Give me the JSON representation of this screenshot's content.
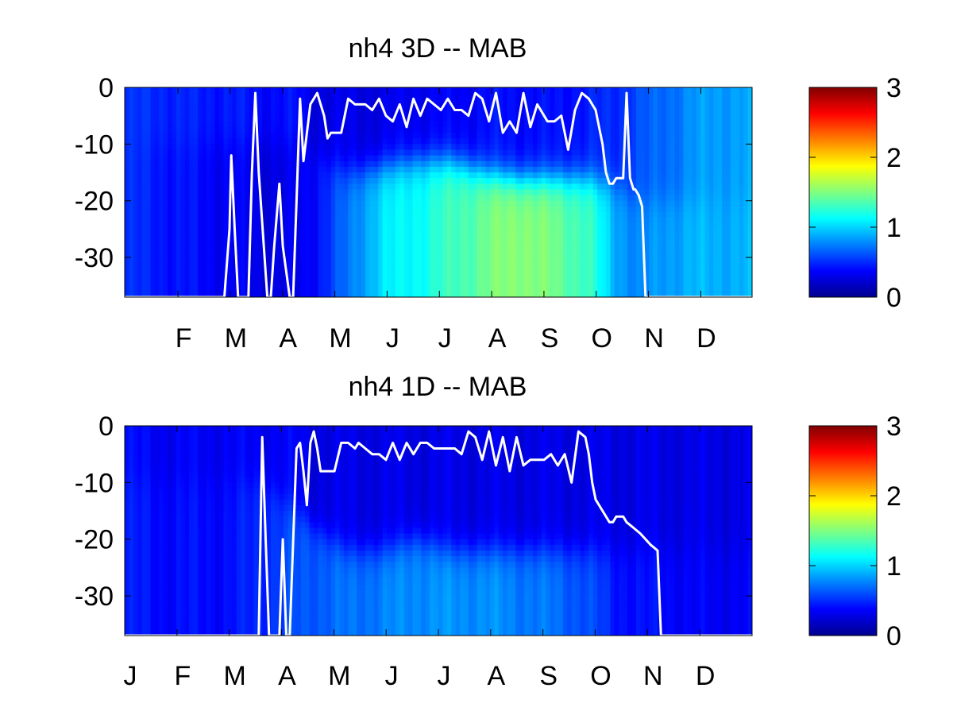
{
  "colors": {
    "background": "#ffffff",
    "line": "#ffffff",
    "colormap": "jet"
  },
  "chart_data": [
    {
      "type": "heatmap",
      "title": "nh4 3D   -- MAB",
      "xlabel": "",
      "ylabel": "",
      "x_tick_labels": [
        "F",
        "M",
        "A",
        "M",
        "J",
        "J",
        "A",
        "S",
        "O",
        "N",
        "D"
      ],
      "y_ticks": [
        0,
        -10,
        -20,
        -30
      ],
      "ylim": [
        -37,
        0
      ],
      "xlim_days": [
        0,
        365
      ],
      "colorbar": {
        "ticks": [
          0,
          1,
          2,
          3
        ],
        "range": [
          0,
          3
        ]
      },
      "field": {
        "day": [
          0,
          20,
          40,
          60,
          80,
          100,
          110,
          130,
          150,
          170,
          190,
          210,
          230,
          250,
          270,
          285,
          300,
          315,
          330,
          345,
          365
        ],
        "surface_value": [
          0.5,
          0.5,
          0.45,
          0.45,
          0.4,
          0.4,
          0.3,
          0.3,
          0.3,
          0.35,
          0.35,
          0.4,
          0.4,
          0.4,
          0.45,
          0.5,
          0.6,
          0.7,
          0.8,
          0.85,
          0.85
        ],
        "deep_value": [
          0.5,
          0.45,
          0.4,
          0.35,
          0.3,
          0.3,
          0.4,
          0.7,
          1.05,
          1.15,
          1.3,
          1.45,
          1.55,
          1.45,
          1.3,
          0.9,
          0.75,
          0.85,
          0.9,
          0.9,
          0.9
        ],
        "transition_depth": [
          -10,
          -10,
          -10,
          -10,
          -10,
          -10,
          -12,
          -15,
          -14,
          -13,
          -13,
          -15,
          -16,
          -16,
          -16,
          -17,
          -20,
          -20,
          -20,
          -20,
          -20
        ]
      },
      "line": {
        "day": [
          0,
          58,
          61,
          62,
          64,
          66,
          72,
          74,
          76,
          78,
          83,
          85,
          87,
          90,
          92,
          96,
          98,
          100,
          102,
          104,
          108,
          112,
          116,
          118,
          120,
          126,
          130,
          134,
          140,
          144,
          148,
          152,
          156,
          160,
          164,
          168,
          172,
          176,
          180,
          184,
          188,
          192,
          196,
          200,
          204,
          208,
          212,
          216,
          220,
          224,
          228,
          232,
          236,
          240,
          246,
          250,
          254,
          258,
          262,
          266,
          270,
          274,
          278,
          280,
          282,
          284,
          286,
          290,
          292,
          294,
          296,
          297,
          299,
          301,
          303,
          312,
          340,
          365
        ],
        "depth": [
          -37,
          -37,
          -25,
          -12,
          -25,
          -37,
          -37,
          -15,
          -1,
          -15,
          -37,
          -37,
          -28,
          -17,
          -28,
          -37,
          -37,
          -20,
          -2,
          -13,
          -3,
          -1,
          -5,
          -9,
          -8,
          -8,
          -2,
          -3,
          -3,
          -4,
          -2,
          -5,
          -6,
          -3,
          -7,
          -2,
          -5,
          -2,
          -3,
          -4,
          -2,
          -4,
          -4,
          -5,
          -1,
          -2,
          -6,
          -1,
          -8,
          -6,
          -8,
          -1,
          -7,
          -3,
          -6,
          -6,
          -5,
          -11,
          -4,
          -1,
          -2,
          -4,
          -10,
          -15,
          -17,
          -17,
          -16,
          -16,
          -1,
          -16,
          -18,
          -18,
          -19,
          -21,
          -37,
          -37,
          -37,
          -37
        ]
      }
    },
    {
      "type": "heatmap",
      "title": "nh4 1D   -- MAB",
      "xlabel": "",
      "ylabel": "",
      "x_tick_labels": [
        "J",
        "F",
        "M",
        "A",
        "M",
        "J",
        "J",
        "A",
        "S",
        "O",
        "N",
        "D"
      ],
      "y_ticks": [
        0,
        -10,
        -20,
        -30
      ],
      "ylim": [
        -37,
        0
      ],
      "xlim_days": [
        0,
        365
      ],
      "colorbar": {
        "ticks": [
          0,
          1,
          2,
          3
        ],
        "range": [
          0,
          3
        ]
      },
      "field": {
        "day": [
          0,
          20,
          40,
          60,
          80,
          100,
          110,
          130,
          150,
          170,
          190,
          210,
          230,
          250,
          270,
          285,
          300,
          315,
          330,
          345,
          365
        ],
        "surface_value": [
          0.4,
          0.35,
          0.35,
          0.35,
          0.35,
          0.35,
          0.3,
          0.3,
          0.3,
          0.3,
          0.3,
          0.3,
          0.3,
          0.3,
          0.3,
          0.3,
          0.3,
          0.3,
          0.3,
          0.3,
          0.3
        ],
        "deep_value": [
          0.45,
          0.4,
          0.4,
          0.4,
          0.5,
          0.6,
          0.65,
          0.7,
          0.75,
          0.8,
          0.8,
          0.8,
          0.75,
          0.7,
          0.6,
          0.45,
          0.4,
          0.4,
          0.35,
          0.35,
          0.35
        ],
        "transition_depth": [
          -10,
          -10,
          -10,
          -10,
          -10,
          -15,
          -18,
          -22,
          -22,
          -20,
          -22,
          -22,
          -22,
          -22,
          -22,
          -22,
          -22,
          -22,
          -22,
          -22,
          -22
        ]
      },
      "line": {
        "day": [
          0,
          78,
          80,
          82,
          84,
          90,
          92,
          94,
          96,
          100,
          102,
          104,
          106,
          108,
          110,
          112,
          114,
          116,
          118,
          122,
          126,
          130,
          134,
          136,
          140,
          144,
          148,
          152,
          156,
          160,
          164,
          168,
          172,
          176,
          180,
          184,
          188,
          192,
          196,
          200,
          204,
          208,
          212,
          216,
          220,
          224,
          228,
          232,
          236,
          240,
          244,
          248,
          252,
          256,
          260,
          264,
          268,
          270,
          272,
          274,
          278,
          282,
          284,
          286,
          290,
          292,
          296,
          300,
          306,
          310,
          312,
          314,
          340,
          365
        ],
        "depth": [
          -37,
          -37,
          -2,
          -20,
          -37,
          -37,
          -20,
          -37,
          -37,
          -4,
          -3,
          -8,
          -14,
          -3,
          -1,
          -4,
          -8,
          -8,
          -8,
          -8,
          -3,
          -3,
          -4,
          -3,
          -4,
          -5,
          -5,
          -6,
          -3,
          -6,
          -3,
          -5,
          -3,
          -3,
          -4,
          -4,
          -4,
          -4,
          -5,
          -1,
          -2,
          -6,
          -1,
          -7,
          -2,
          -8,
          -2,
          -7,
          -6,
          -6,
          -6,
          -5,
          -7,
          -5,
          -10,
          -1,
          -2,
          -5,
          -10,
          -13,
          -15,
          -17,
          -17,
          -16,
          -16,
          -17,
          -18,
          -19,
          -21,
          -22,
          -37,
          -37,
          -37,
          -37
        ]
      }
    }
  ]
}
